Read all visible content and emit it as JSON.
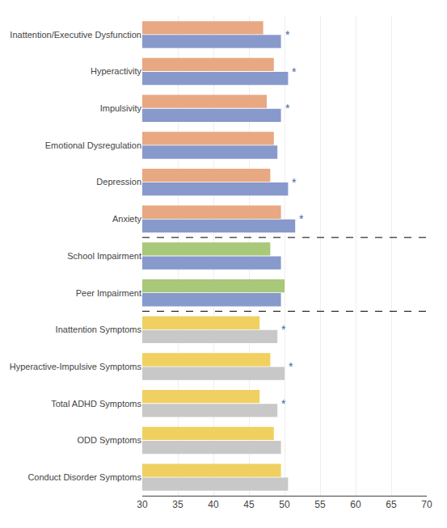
{
  "chart_data": {
    "type": "bar",
    "orientation": "horizontal",
    "categories": [
      "Inattention/Executive Dysfunction",
      "Hyperactivity",
      "Impulsivity",
      "Emotional Dysregulation",
      "Depression",
      "Anxiety",
      "School Impairment",
      "Peer Impairment",
      "Inattention Symptoms",
      "Hyperactive-Impulsive Symptoms",
      "Total ADHD Symptoms",
      "ODD Symptoms",
      "Conduct Disorder Symptoms"
    ],
    "series": [
      {
        "values": [
          47.0,
          48.5,
          47.5,
          48.5,
          48.0,
          49.5,
          48.0,
          50.0,
          46.5,
          48.0,
          46.5,
          48.5,
          49.5
        ],
        "colors": [
          "#e8a882",
          "#e8a882",
          "#e8a882",
          "#e8a882",
          "#e8a882",
          "#e8a882",
          "#a8c87a",
          "#a8c87a",
          "#f0d060",
          "#f0d060",
          "#f0d060",
          "#f0d060",
          "#f0d060"
        ]
      },
      {
        "values": [
          49.5,
          50.5,
          49.5,
          49.0,
          50.5,
          51.5,
          49.5,
          49.5,
          49.0,
          50.0,
          49.0,
          49.5,
          50.5
        ],
        "colors": [
          "#8899cc",
          "#8899cc",
          "#8899cc",
          "#8899cc",
          "#8899cc",
          "#8899cc",
          "#8899cc",
          "#8899cc",
          "#c8c8c8",
          "#c8c8c8",
          "#c8c8c8",
          "#c8c8c8",
          "#c8c8c8"
        ]
      }
    ],
    "annotations": [
      {
        "category": "Inattention/Executive Dysfunction",
        "text": "*",
        "color": "#4466aa"
      },
      {
        "category": "Hyperactivity",
        "text": "*",
        "color": "#4466aa"
      },
      {
        "category": "Impulsivity",
        "text": "*",
        "color": "#4466aa"
      },
      {
        "category": "Depression",
        "text": "*",
        "color": "#4466aa"
      },
      {
        "category": "Anxiety",
        "text": "*",
        "color": "#4466aa"
      },
      {
        "category": "Inattention Symptoms",
        "text": "*",
        "color": "#4466aa"
      },
      {
        "category": "Hyperactive-Impulsive Symptoms",
        "text": "*",
        "color": "#4466aa"
      },
      {
        "category": "Total ADHD Symptoms",
        "text": "*",
        "color": "#4466aa"
      }
    ],
    "xlim": [
      30,
      70
    ],
    "xticks": [
      30,
      35,
      40,
      45,
      50,
      55,
      60,
      65,
      70
    ],
    "grid": true
  }
}
